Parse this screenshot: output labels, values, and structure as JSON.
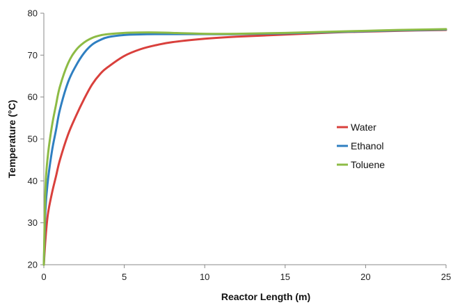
{
  "chart_data": {
    "type": "line",
    "xlabel": "Reactor Length (m)",
    "ylabel": "Temperature (°C)",
    "xlim": [
      0,
      25
    ],
    "ylim": [
      20,
      80
    ],
    "xticks": [
      0,
      5,
      10,
      15,
      20,
      25
    ],
    "yticks": [
      20,
      30,
      40,
      50,
      60,
      70,
      80
    ],
    "grid": false,
    "legend_position": "right",
    "x": [
      0,
      0.1,
      0.25,
      0.5,
      0.75,
      1,
      1.5,
      2,
      2.5,
      3,
      3.5,
      4,
      5,
      6,
      7,
      8,
      10,
      12,
      15,
      18,
      20,
      22,
      25
    ],
    "series": [
      {
        "name": "Water",
        "color": "#D9403C",
        "values": [
          20,
          26,
          32,
          37,
          41,
          45,
          51,
          55.5,
          59.5,
          63,
          65.5,
          67.2,
          69.8,
          71.4,
          72.4,
          73.1,
          73.9,
          74.4,
          74.9,
          75.4,
          75.6,
          75.8,
          76
        ]
      },
      {
        "name": "Ethanol",
        "color": "#2F7FC1",
        "values": [
          20,
          33,
          40,
          47,
          52,
          57,
          63.5,
          67.5,
          70.5,
          72.5,
          73.6,
          74.3,
          74.8,
          74.95,
          75,
          75,
          75,
          75,
          75.2,
          75.5,
          75.7,
          75.9,
          76.1
        ]
      },
      {
        "name": "Toluene",
        "color": "#8DBB45",
        "values": [
          20,
          38,
          46,
          53,
          58,
          62.5,
          68,
          71.2,
          73,
          74.1,
          74.7,
          75,
          75.3,
          75.4,
          75.4,
          75.3,
          75.1,
          75.1,
          75.3,
          75.6,
          75.8,
          76,
          76.2
        ]
      }
    ]
  }
}
